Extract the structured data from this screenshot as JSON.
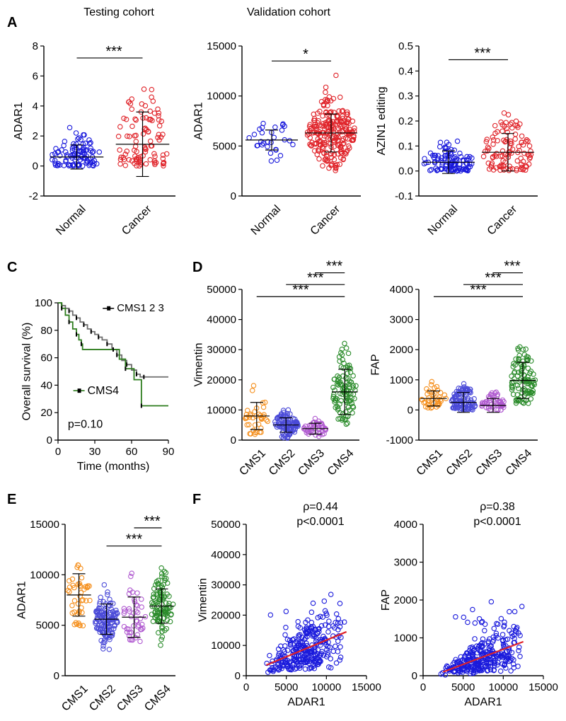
{
  "headers": {
    "testing": "Testing cohort",
    "validation": "Validation cohort"
  },
  "panel_letters": [
    "A",
    "C",
    "D",
    "E",
    "F"
  ],
  "colors": {
    "normal": "#1a1adc",
    "cancer": "#e0242a",
    "cms1": "#f5901e",
    "cms2": "#4a4ad8",
    "cms3": "#b05ad0",
    "cms4": "#2c8c2c",
    "fit": "#e0242a",
    "survival_high": "#6e6e6e",
    "survival_low": "#2e7d1e"
  },
  "chart_data": [
    {
      "id": "A1",
      "type": "scatter",
      "subtype": "dotplot",
      "ylabel": "ADAR1",
      "ylim": [
        -2,
        8
      ],
      "yticks": [
        -2,
        0,
        2,
        4,
        6,
        8
      ],
      "yticklabels": [
        "-2",
        "0",
        "2",
        "4",
        "6",
        "8"
      ],
      "categories": [
        "Normal",
        "Cancer"
      ],
      "series": [
        {
          "name": "Normal",
          "color": "#1a1adc",
          "n": 100,
          "mean": 0.6,
          "sd": 0.8,
          "clip": [
            0.0,
            5.0
          ]
        },
        {
          "name": "Cancer",
          "color": "#e0242a",
          "n": 100,
          "mean": 1.45,
          "sd": 2.15,
          "clip": [
            0.0,
            5.2
          ]
        }
      ],
      "significance": [
        {
          "from": 0,
          "to": 1,
          "label": "***",
          "level": 7.2
        }
      ]
    },
    {
      "id": "A2",
      "type": "scatter",
      "subtype": "dotplot",
      "ylabel": "ADAR1",
      "ylim": [
        0,
        15000
      ],
      "yticks": [
        0,
        5000,
        10000,
        15000
      ],
      "yticklabels": [
        "0",
        "5000",
        "10000",
        "15000"
      ],
      "categories": [
        "Normal",
        "Cancer"
      ],
      "series": [
        {
          "name": "Normal",
          "color": "#1a1adc",
          "n": 30,
          "mean": 5600,
          "sd": 1000,
          "clip": [
            3200,
            7400
          ]
        },
        {
          "name": "Cancer",
          "color": "#e0242a",
          "n": 240,
          "mean": 6300,
          "sd": 1900,
          "clip": [
            2200,
            12600
          ]
        }
      ],
      "significance": [
        {
          "from": 0,
          "to": 1,
          "label": "*",
          "level": 13500
        }
      ]
    },
    {
      "id": "A3",
      "type": "scatter",
      "subtype": "dotplot",
      "ylabel": "AZIN1 editing",
      "ylim": [
        -0.1,
        0.5
      ],
      "yticks": [
        -0.1,
        0.0,
        0.1,
        0.2,
        0.3,
        0.4,
        0.5
      ],
      "yticklabels": [
        "-0.1",
        "0.0",
        "0.1",
        "0.2",
        "0.3",
        "0.4",
        "0.5"
      ],
      "categories": [
        "Normal",
        "Cancer"
      ],
      "series": [
        {
          "name": "Normal",
          "color": "#1a1adc",
          "n": 110,
          "mean": 0.035,
          "sd": 0.045,
          "clip": [
            0.0,
            0.23
          ]
        },
        {
          "name": "Cancer",
          "color": "#e0242a",
          "n": 110,
          "mean": 0.075,
          "sd": 0.075,
          "clip": [
            0.0,
            0.41
          ]
        }
      ],
      "significance": [
        {
          "from": 0,
          "to": 1,
          "label": "***",
          "level": 0.445
        }
      ]
    },
    {
      "id": "C",
      "type": "line",
      "subtype": "kaplan-meier",
      "ylabel": "Overall survival (%)",
      "xlabel": "Time (months)",
      "xlim": [
        0,
        90
      ],
      "ylim": [
        0,
        100
      ],
      "xticks": [
        0,
        30,
        60,
        90
      ],
      "yticks": [
        0,
        20,
        40,
        60,
        80,
        100
      ],
      "xticklabels": [
        "0",
        "30",
        "60",
        "90"
      ],
      "yticklabels": [
        "0",
        "20",
        "40",
        "60",
        "80",
        "100"
      ],
      "annotation": "p=0.10",
      "series": [
        {
          "name": "CMS1 2 3",
          "color": "#6e6e6e",
          "x": [
            0,
            3,
            6,
            9,
            12,
            15,
            18,
            21,
            24,
            27,
            30,
            33,
            36,
            40,
            44,
            48,
            52,
            56,
            60,
            64,
            67,
            70,
            90
          ],
          "y": [
            100,
            98,
            96,
            94,
            91,
            89,
            86,
            84,
            81,
            79,
            77,
            75,
            73,
            70,
            66,
            62,
            58,
            55,
            51,
            48,
            46,
            46,
            46
          ]
        },
        {
          "name": "CMS4",
          "color": "#2e7d1e",
          "x": [
            0,
            3,
            6,
            9,
            12,
            15,
            17,
            19,
            20,
            45,
            50,
            55,
            62,
            68,
            90
          ],
          "y": [
            100,
            96,
            91,
            86,
            81,
            77,
            73,
            70,
            66,
            66,
            59,
            52,
            44,
            25,
            25
          ]
        }
      ]
    },
    {
      "id": "D1",
      "type": "scatter",
      "subtype": "dotplot",
      "ylabel": "Vimentin",
      "ylim": [
        0,
        50000
      ],
      "yticks": [
        0,
        10000,
        20000,
        30000,
        40000,
        50000
      ],
      "yticklabels": [
        "0",
        "10000",
        "20000",
        "30000",
        "40000",
        "50000"
      ],
      "categories": [
        "CMS1",
        "CMS2",
        "CMS3",
        "CMS4"
      ],
      "series": [
        {
          "name": "CMS1",
          "color": "#f5901e",
          "n": 40,
          "mean": 8000,
          "sd": 4500,
          "clip": [
            1500,
            23500
          ]
        },
        {
          "name": "CMS2",
          "color": "#4a4ad8",
          "n": 100,
          "mean": 5000,
          "sd": 2400,
          "clip": [
            500,
            11500
          ]
        },
        {
          "name": "CMS3",
          "color": "#b05ad0",
          "n": 50,
          "mean": 3800,
          "sd": 1800,
          "clip": [
            500,
            8500
          ]
        },
        {
          "name": "CMS4",
          "color": "#2c8c2c",
          "n": 110,
          "mean": 16000,
          "sd": 7500,
          "clip": [
            4500,
            47500
          ]
        }
      ],
      "significance": [
        {
          "from": 2,
          "to": 3,
          "label": "***",
          "level": 55500
        },
        {
          "from": 1,
          "to": 3,
          "label": "***",
          "level": 51600
        },
        {
          "from": 0,
          "to": 3,
          "label": "***",
          "level": 47600
        }
      ]
    },
    {
      "id": "D2",
      "type": "scatter",
      "subtype": "dotplot",
      "ylabel": "FAP",
      "ylim": [
        -1000,
        4000
      ],
      "yticks": [
        -1000,
        0,
        1000,
        2000,
        3000,
        4000
      ],
      "yticklabels": [
        "-1000",
        "0",
        "1000",
        "2000",
        "3000",
        "4000"
      ],
      "categories": [
        "CMS1",
        "CMS2",
        "CMS3",
        "CMS4"
      ],
      "series": [
        {
          "name": "CMS1",
          "color": "#f5901e",
          "n": 40,
          "mean": 380,
          "sd": 250,
          "clip": [
            50,
            950
          ]
        },
        {
          "name": "CMS2",
          "color": "#4a4ad8",
          "n": 100,
          "mean": 250,
          "sd": 330,
          "clip": [
            0,
            3600
          ]
        },
        {
          "name": "CMS3",
          "color": "#b05ad0",
          "n": 50,
          "mean": 150,
          "sd": 230,
          "clip": [
            0,
            1500
          ]
        },
        {
          "name": "CMS4",
          "color": "#2c8c2c",
          "n": 110,
          "mean": 980,
          "sd": 600,
          "clip": [
            200,
            2900
          ]
        }
      ],
      "significance": [
        {
          "from": 2,
          "to": 3,
          "label": "***",
          "level": 4550
        },
        {
          "from": 1,
          "to": 3,
          "label": "***",
          "level": 4160
        },
        {
          "from": 0,
          "to": 3,
          "label": "***",
          "level": 3760
        }
      ]
    },
    {
      "id": "E",
      "type": "scatter",
      "subtype": "dotplot",
      "ylabel": "ADAR1",
      "ylim": [
        0,
        15000
      ],
      "yticks": [
        0,
        5000,
        10000,
        15000
      ],
      "yticklabels": [
        "0",
        "5000",
        "10000",
        "15000"
      ],
      "categories": [
        "CMS1",
        "CMS2",
        "CMS3",
        "CMS4"
      ],
      "series": [
        {
          "name": "CMS1",
          "color": "#f5901e",
          "n": 45,
          "mean": 8000,
          "sd": 2100,
          "clip": [
            4800,
            12500
          ]
        },
        {
          "name": "CMS2",
          "color": "#4a4ad8",
          "n": 130,
          "mean": 5600,
          "sd": 1500,
          "clip": [
            2300,
            12400
          ]
        },
        {
          "name": "CMS3",
          "color": "#b05ad0",
          "n": 45,
          "mean": 5800,
          "sd": 2000,
          "clip": [
            3300,
            12700
          ]
        },
        {
          "name": "CMS4",
          "color": "#2c8c2c",
          "n": 110,
          "mean": 6900,
          "sd": 1700,
          "clip": [
            2700,
            11200
          ]
        }
      ],
      "significance": [
        {
          "from": 2,
          "to": 3,
          "label": "***",
          "level": 14650
        },
        {
          "from": 1,
          "to": 3,
          "label": "***",
          "level": 12850
        }
      ]
    },
    {
      "id": "F1",
      "type": "scatter",
      "subtype": "correlation",
      "xlabel": "ADAR1",
      "ylabel": "Vimentin",
      "xlim": [
        0,
        15000
      ],
      "ylim": [
        0,
        50000
      ],
      "xticks": [
        0,
        5000,
        10000,
        15000
      ],
      "yticks": [
        0,
        10000,
        20000,
        30000,
        40000,
        50000
      ],
      "xticklabels": [
        "0",
        "5000",
        "10000",
        "15000"
      ],
      "yticklabels": [
        "0",
        "10000",
        "20000",
        "30000",
        "40000",
        "50000"
      ],
      "rho": "ρ=0.44",
      "p": "p<0.0001",
      "n": 300,
      "x_range": [
        2200,
        12700
      ],
      "color": "#1a1adc",
      "fit": {
        "x0": 2500,
        "y0": 3500,
        "x1": 12500,
        "y1": 14500,
        "color": "#e0242a"
      }
    },
    {
      "id": "F2",
      "type": "scatter",
      "subtype": "correlation",
      "xlabel": "ADAR1",
      "ylabel": "FAP",
      "xlim": [
        0,
        15000
      ],
      "ylim": [
        0,
        4000
      ],
      "xticks": [
        0,
        5000,
        10000,
        15000
      ],
      "yticks": [
        0,
        1000,
        2000,
        3000,
        4000
      ],
      "xticklabels": [
        "0",
        "5000",
        "10000",
        "15000"
      ],
      "yticklabels": [
        "0",
        "1000",
        "2000",
        "3000",
        "4000"
      ],
      "rho": "ρ=0.38",
      "p": "p<0.0001",
      "n": 300,
      "x_range": [
        2200,
        12700
      ],
      "color": "#1a1adc",
      "fit": {
        "x0": 2500,
        "y0": 100,
        "x1": 12500,
        "y1": 900,
        "color": "#e0242a"
      }
    }
  ]
}
